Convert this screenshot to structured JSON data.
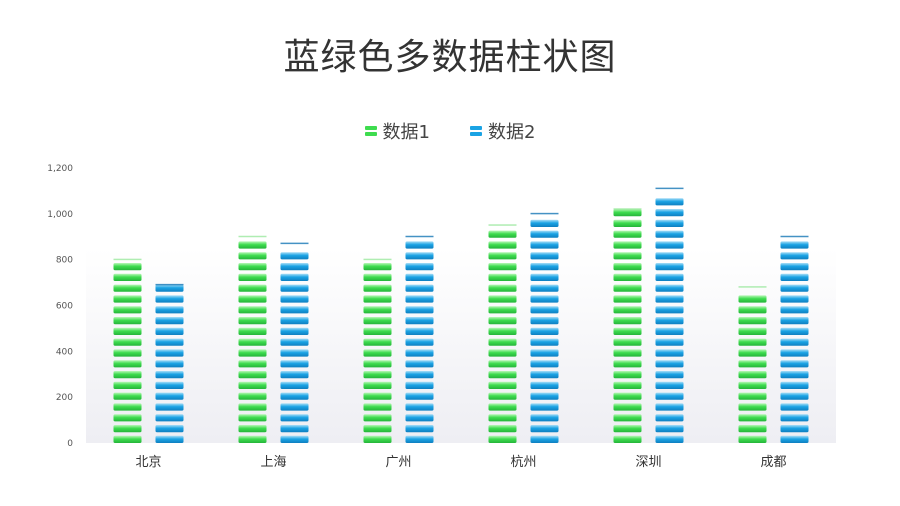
{
  "title": "蓝绿色多数据柱状图",
  "legend": [
    {
      "label": "数据1",
      "color": "#3edc4f"
    },
    {
      "label": "数据2",
      "color": "#1aa3e4"
    }
  ],
  "chart_data": {
    "type": "bar",
    "title": "蓝绿色多数据柱状图",
    "categories": [
      "北京",
      "上海",
      "广州",
      "杭州",
      "深圳",
      "成都"
    ],
    "series": [
      {
        "name": "数据1",
        "values": [
          800,
          900,
          800,
          950,
          1020,
          680
        ],
        "color": "#3edc4f"
      },
      {
        "name": "数据2",
        "values": [
          690,
          870,
          900,
          1000,
          1110,
          900
        ],
        "color": "#1aa3e4"
      }
    ],
    "ylim": [
      0,
      1200
    ],
    "yticks": [
      "0",
      "200",
      "400",
      "600",
      "800",
      "1,000",
      "1,200"
    ],
    "ytick_values": [
      0,
      200,
      400,
      600,
      800,
      1000,
      1200
    ],
    "grid": false,
    "legend_position": "top-center"
  }
}
